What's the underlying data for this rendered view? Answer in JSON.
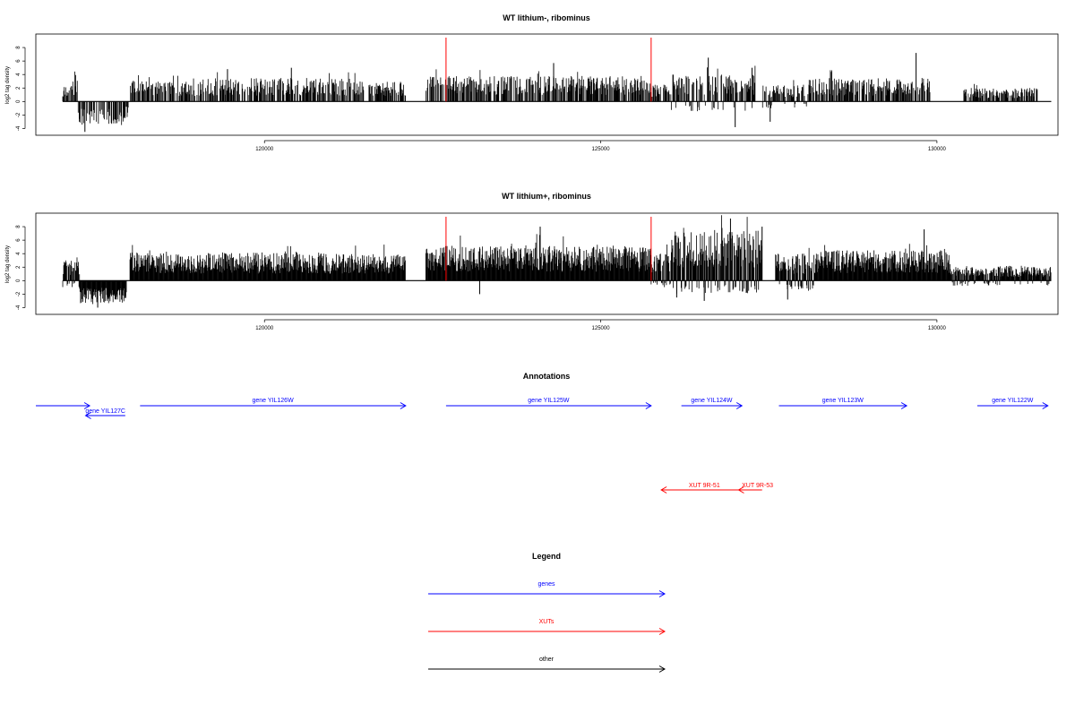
{
  "colors": {
    "gene": "#0000ff",
    "xut": "#ff0000",
    "other": "#000000",
    "bars": "#000000",
    "marker": "#ff0000"
  },
  "chart_data": [
    {
      "type": "bar",
      "title": "WT lithium-, ribominus",
      "ylabel": "log2 tag density",
      "xlim": [
        116600,
        131800
      ],
      "ylim": [
        -5,
        10
      ],
      "xticks": [
        120000,
        125000,
        130000
      ],
      "yticks": [
        -4,
        -2,
        0,
        2,
        4,
        6,
        8
      ],
      "markers": [
        122700,
        125750
      ],
      "regions": [
        {
          "x0": 117000,
          "x1": 117150,
          "pos": 2.5,
          "neg": 0
        },
        {
          "x0": 117150,
          "x1": 117230,
          "pos": 3.5,
          "neg": 0
        },
        {
          "x0": 117230,
          "x1": 117900,
          "pos": 0,
          "neg": -3.5
        },
        {
          "x0": 117900,
          "x1": 118000,
          "pos": 0,
          "neg": -2.5
        },
        {
          "x0": 118000,
          "x1": 119000,
          "pos": 3.0,
          "neg": 0
        },
        {
          "x0": 119000,
          "x1": 121400,
          "pos": 3.5,
          "neg": 0
        },
        {
          "x0": 121400,
          "x1": 122100,
          "pos": 3.0,
          "neg": 0
        },
        {
          "x0": 122400,
          "x1": 125750,
          "pos": 3.8,
          "neg": 0
        },
        {
          "x0": 125750,
          "x1": 126050,
          "pos": 2.5,
          "neg": 0
        },
        {
          "x0": 126050,
          "x1": 127300,
          "pos": 4.0,
          "neg": -1.5
        },
        {
          "x0": 127400,
          "x1": 128100,
          "pos": 2.5,
          "neg": -1.0
        },
        {
          "x0": 128100,
          "x1": 129900,
          "pos": 3.5,
          "neg": 0
        },
        {
          "x0": 130400,
          "x1": 131500,
          "pos": 2.0,
          "neg": 0
        }
      ],
      "peaks": [
        {
          "x": 117330,
          "y": -4.5
        },
        {
          "x": 119450,
          "y": 4.8
        },
        {
          "x": 120400,
          "y": 5.0
        },
        {
          "x": 124300,
          "y": 5.7
        },
        {
          "x": 126600,
          "y": 6.5
        },
        {
          "x": 127000,
          "y": -3.8
        },
        {
          "x": 127250,
          "y": 5.0
        },
        {
          "x": 127520,
          "y": -3.0
        },
        {
          "x": 129690,
          "y": 7.2
        }
      ]
    },
    {
      "type": "bar",
      "title": "WT lithium+, ribominus",
      "ylabel": "log2 tag density",
      "xlim": [
        116600,
        131800
      ],
      "ylim": [
        -5,
        10
      ],
      "xticks": [
        120000,
        125000,
        130000
      ],
      "yticks": [
        -4,
        -2,
        0,
        2,
        4,
        6,
        8
      ],
      "markers": [
        122700,
        125750
      ],
      "regions": [
        {
          "x0": 117000,
          "x1": 117250,
          "pos": 3.0,
          "neg": -1.0
        },
        {
          "x0": 117250,
          "x1": 117950,
          "pos": 0,
          "neg": -3.5
        },
        {
          "x0": 118000,
          "x1": 120900,
          "pos": 4.2,
          "neg": 0
        },
        {
          "x0": 120900,
          "x1": 122100,
          "pos": 4.0,
          "neg": 0
        },
        {
          "x0": 122400,
          "x1": 125750,
          "pos": 5.2,
          "neg": 0
        },
        {
          "x0": 125750,
          "x1": 126050,
          "pos": 4.0,
          "neg": -1.0
        },
        {
          "x0": 126050,
          "x1": 127400,
          "pos": 7.5,
          "neg": -2.0
        },
        {
          "x0": 127600,
          "x1": 128200,
          "pos": 4.0,
          "neg": -1.5
        },
        {
          "x0": 128200,
          "x1": 130200,
          "pos": 4.5,
          "neg": 0
        },
        {
          "x0": 130200,
          "x1": 131700,
          "pos": 2.2,
          "neg": -0.8
        }
      ],
      "peaks": [
        {
          "x": 117520,
          "y": -4.0
        },
        {
          "x": 123200,
          "y": -2.0
        },
        {
          "x": 124100,
          "y": 8.0
        },
        {
          "x": 126130,
          "y": -2.5
        },
        {
          "x": 126540,
          "y": -3.0
        },
        {
          "x": 126930,
          "y": 9.2
        },
        {
          "x": 127400,
          "y": 8.0
        },
        {
          "x": 127780,
          "y": -2.8
        },
        {
          "x": 129810,
          "y": 7.6
        }
      ]
    }
  ],
  "annotations": {
    "title": "Annotations",
    "genes": [
      {
        "label": "",
        "start": 116600,
        "end": 117400,
        "strand": "+",
        "row": 0
      },
      {
        "label": "gene YIL127C",
        "start": 117340,
        "end": 117930,
        "strand": "-",
        "row": 1
      },
      {
        "label": "gene YIL126W",
        "start": 118150,
        "end": 122100,
        "strand": "+",
        "row": 0
      },
      {
        "label": "gene YIL125W",
        "start": 122700,
        "end": 125750,
        "strand": "+",
        "row": 0
      },
      {
        "label": "gene YIL124W",
        "start": 126200,
        "end": 127100,
        "strand": "+",
        "row": 0
      },
      {
        "label": "gene YIL123W",
        "start": 127650,
        "end": 129550,
        "strand": "+",
        "row": 0
      },
      {
        "label": "gene YIL122W",
        "start": 130600,
        "end": 131650,
        "strand": "+",
        "row": 0
      }
    ],
    "xuts": [
      {
        "label": "XUT 9R-51",
        "start": 125900,
        "end": 127050,
        "strand": "-"
      },
      {
        "label": "XUT 9R-53",
        "start": 127050,
        "end": 127400,
        "strand": "-"
      }
    ]
  },
  "legend": {
    "title": "Legend",
    "items": [
      {
        "label": "genes",
        "kind": "gene"
      },
      {
        "label": "XUTs",
        "kind": "xut"
      },
      {
        "label": "other",
        "kind": "other"
      }
    ]
  }
}
